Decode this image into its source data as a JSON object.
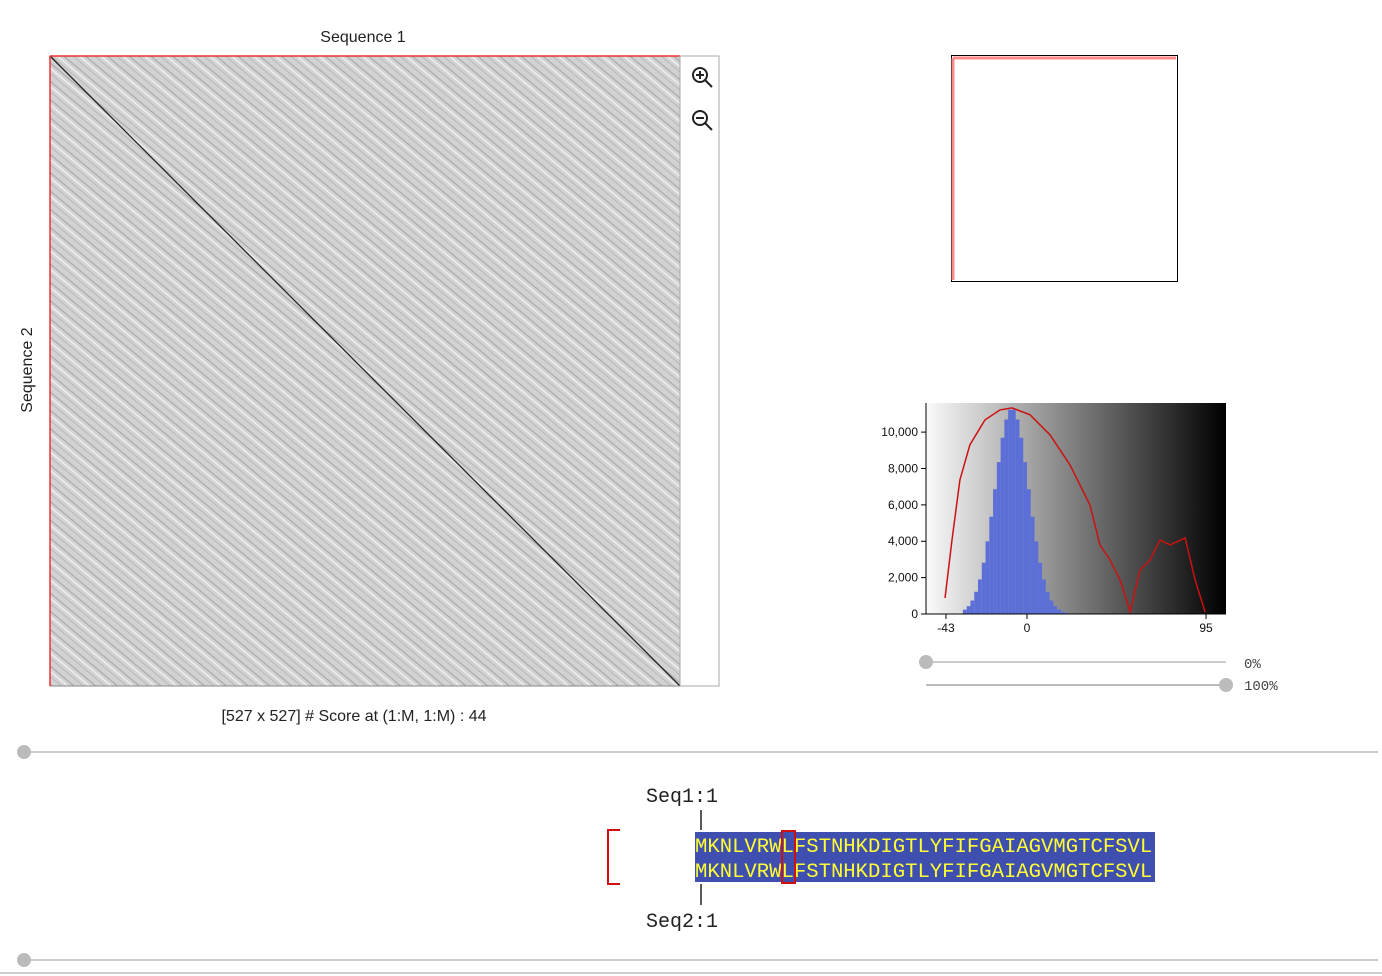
{
  "dotplot": {
    "x_label": "Sequence 1",
    "y_label": "Sequence 2",
    "status": "[527 x 527] # Score at (1:M, 1:M) : 44"
  },
  "histogram": {
    "type": "histogram",
    "bins": [
      -34,
      -32,
      -30,
      -28,
      -26,
      -24,
      -22,
      -20,
      -18,
      -16,
      -14,
      -12,
      -10,
      -8,
      -6,
      -4,
      -2,
      0,
      2,
      4,
      6,
      8,
      10,
      12,
      14,
      16,
      18,
      20,
      22
    ],
    "counts": [
      240,
      430,
      740,
      1220,
      1900,
      2820,
      3990,
      5350,
      6860,
      8350,
      9690,
      10690,
      11230,
      11230,
      10690,
      9690,
      8350,
      6860,
      5350,
      3990,
      2820,
      1900,
      1220,
      740,
      430,
      240,
      120,
      60
    ],
    "bar_color": "#5b6fd6",
    "line": {
      "color": "#cc1111",
      "x": [
        -43.5,
        -39.8,
        -35.6,
        -30.3,
        -22.3,
        -14.3,
        -8.0,
        1.6,
        12.2,
        22.8,
        33.4,
        38.7,
        44.1,
        49.4,
        54.7,
        60.0,
        65.3,
        70.6,
        75.9,
        83.9,
        89.2,
        94.5
      ],
      "y": [
        880,
        4070,
        7370,
        9300,
        10670,
        11220,
        11330,
        10950,
        9850,
        8200,
        6000,
        3800,
        2970,
        1870,
        110,
        2420,
        2970,
        4070,
        3800,
        4180,
        1870,
        110
      ]
    },
    "xlim": [
      -53.6,
      105.6
    ],
    "ylim": [
      0,
      11600
    ],
    "xticks": [
      -43,
      0,
      95
    ],
    "yticks": [
      0,
      {
        "value": 2000,
        "label": "2,000"
      },
      {
        "value": 4000,
        "label": "4,000"
      },
      {
        "value": 6000,
        "label": "6,000"
      },
      {
        "value": 8000,
        "label": "8,000"
      },
      {
        "value": 10000,
        "label": "10,000"
      }
    ]
  },
  "sliders": {
    "low_label": "0%",
    "high_label": "100%"
  },
  "alignment": {
    "seq1_label": "Seq1:1",
    "seq2_label": "Seq2:1",
    "seq1": "MKNLVRWLFSTNHKDIGTLYFIFGAIAGVMGTCFSVL",
    "seq2": "MKNLVRWLFSTNHKDIGTLYFIFGAIAGVMGTCFSVL"
  }
}
